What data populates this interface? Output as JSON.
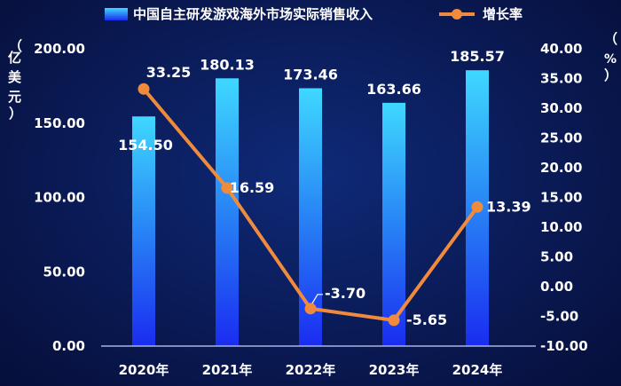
{
  "chart_data": {
    "type": "bar+line",
    "categories": [
      "2020年",
      "2021年",
      "2022年",
      "2023年",
      "2024年"
    ],
    "series": [
      {
        "name": "中国自主研发游戏海外市场实际销售收入",
        "type": "bar",
        "axis": "left",
        "values": [
          154.5,
          180.13,
          173.46,
          163.66,
          185.57
        ],
        "labels": [
          "154.50",
          "180.13",
          "173.46",
          "163.66",
          "185.57"
        ]
      },
      {
        "name": "增长率",
        "type": "line",
        "axis": "right",
        "values": [
          33.25,
          16.59,
          -3.7,
          -5.65,
          13.39
        ],
        "labels": [
          "33.25",
          "16.59",
          "-3.70",
          "-5.65",
          "13.39"
        ]
      }
    ],
    "y_left": {
      "unit_chars": [
        "（",
        "亿",
        "美",
        "元",
        "）"
      ],
      "ylim": [
        0,
        200
      ],
      "ticks": [
        "0.00",
        "50.00",
        "100.00",
        "150.00",
        "200.00"
      ]
    },
    "y_right": {
      "unit_chars": [
        "（",
        "%",
        "）"
      ],
      "ylim": [
        -10,
        40
      ],
      "ticks": [
        "-10.00",
        "-5.00",
        "0.00",
        "5.00",
        "10.00",
        "15.00",
        "20.00",
        "25.00",
        "30.00",
        "35.00",
        "40.00"
      ]
    },
    "legend_position": "top",
    "colors": {
      "bar_top": "#3fd8ff",
      "bar_bottom": "#1a2cf0",
      "line": "#f08a3c",
      "text": "#ffffff"
    }
  }
}
